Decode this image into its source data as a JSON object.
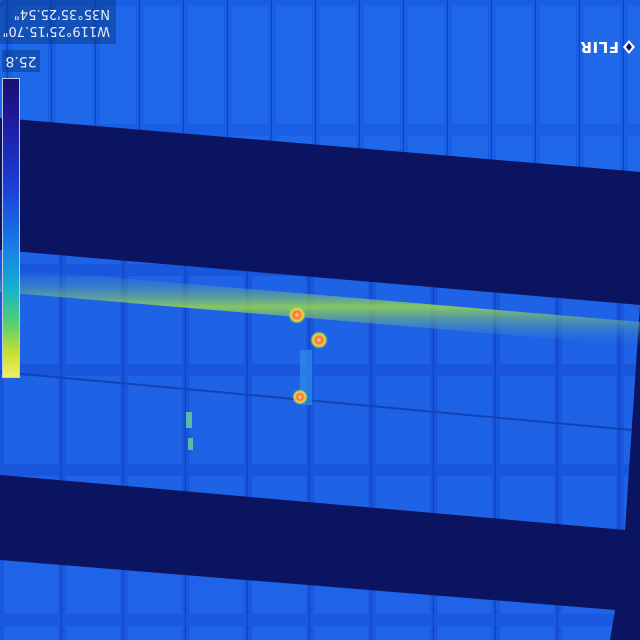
{
  "overlay": {
    "gps_line1": "N35°35'25.54\"",
    "gps_line2": "W119°25'15.70\"",
    "temperature_max": "25.8",
    "brand": "FLIR"
  },
  "palette": {
    "panel": "#1650e0",
    "panel_light": "#2a78f0",
    "shadow_gap": "#0b1460",
    "cell_line": "#1040b8",
    "warm_band": "#9ad84a",
    "hotspot": "#ff6a3a",
    "hotspot_core": "#fff0b0"
  },
  "image": {
    "description_icon": "thermal-solar-panel-photo",
    "hotspot_count": 3
  }
}
